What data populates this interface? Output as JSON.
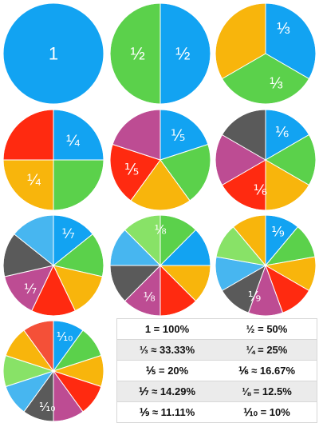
{
  "colors": {
    "blue": "#12a3f2",
    "green": "#5bd14b",
    "yellow": "#f8b50c",
    "red": "#ff2a10",
    "magenta": "#bd4c93",
    "gray": "#5a5a5a",
    "light_green": "#88e267",
    "light_blue": "#47b6f0",
    "orange_red": "#f45038"
  },
  "pies": [
    {
      "id": "whole",
      "slices": [
        "blue"
      ],
      "labels": [
        "1"
      ]
    },
    {
      "id": "halves",
      "slices": [
        "blue",
        "green"
      ],
      "labels": [
        "½",
        "½"
      ]
    },
    {
      "id": "thirds",
      "slices": [
        "blue",
        "green",
        "yellow"
      ],
      "labels": [
        "⅓",
        "⅓"
      ]
    },
    {
      "id": "quarters",
      "slices": [
        "blue",
        "green",
        "yellow",
        "red"
      ],
      "labels": [
        "¼",
        "¼"
      ]
    },
    {
      "id": "fifths",
      "slices": [
        "blue",
        "green",
        "yellow",
        "red",
        "magenta"
      ],
      "labels": [
        "⅕",
        "⅕"
      ]
    },
    {
      "id": "sixths",
      "slices": [
        "blue",
        "green",
        "yellow",
        "red",
        "magenta",
        "gray"
      ],
      "labels": [
        "⅙",
        "⅙"
      ]
    },
    {
      "id": "sevenths",
      "slices": [
        "blue",
        "green",
        "yellow",
        "red",
        "magenta",
        "gray",
        "light_blue"
      ],
      "labels": [
        "⅐",
        "⅐"
      ]
    },
    {
      "id": "eighths",
      "slices": [
        "green",
        "blue",
        "yellow",
        "red",
        "magenta",
        "gray",
        "light_blue",
        "light_green"
      ],
      "labels": [
        "⅛",
        "⅛"
      ]
    },
    {
      "id": "ninths",
      "slices": [
        "blue",
        "green",
        "yellow",
        "red",
        "magenta",
        "gray",
        "light_blue",
        "light_green",
        "yellow"
      ],
      "labels": [
        "⅑",
        "⅑"
      ]
    },
    {
      "id": "tenths",
      "slices": [
        "blue",
        "green",
        "yellow",
        "red",
        "magenta",
        "gray",
        "light_blue",
        "light_green",
        "yellow",
        "orange_red"
      ],
      "labels": [
        "⅒",
        "⅒"
      ]
    }
  ],
  "table": {
    "rows": [
      [
        "1 = 100%",
        "½ = 50%"
      ],
      [
        "⅓ ≈ 33.33%",
        "¼ = 25%"
      ],
      [
        "⅕ = 20%",
        "⅙ ≈ 16.67%"
      ],
      [
        "⅐ ≈ 14.29%",
        "⅛ = 12.5%"
      ],
      [
        "⅑ ≈ 11.11%",
        "⅒ = 10%"
      ]
    ]
  }
}
